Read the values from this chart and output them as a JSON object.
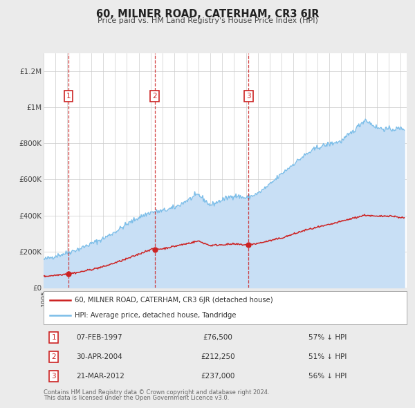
{
  "title": "60, MILNER ROAD, CATERHAM, CR3 6JR",
  "subtitle": "Price paid vs. HM Land Registry's House Price Index (HPI)",
  "hpi_label": "HPI: Average price, detached house, Tandridge",
  "property_label": "60, MILNER ROAD, CATERHAM, CR3 6JR (detached house)",
  "footer1": "Contains HM Land Registry data © Crown copyright and database right 2024.",
  "footer2": "This data is licensed under the Open Government Licence v3.0.",
  "hpi_color": "#7abde8",
  "hpi_fill_color": "#c8dff5",
  "property_color": "#cc2222",
  "background_color": "#ebebeb",
  "plot_bg_color": "#ffffff",
  "grid_color": "#cccccc",
  "ylim": [
    0,
    1300000
  ],
  "yticks": [
    0,
    200000,
    400000,
    600000,
    800000,
    1000000,
    1200000
  ],
  "ytick_labels": [
    "£0",
    "£200K",
    "£400K",
    "£600K",
    "£800K",
    "£1M",
    "£1.2M"
  ],
  "xstart": 1995.0,
  "xend": 2025.5,
  "transactions": [
    {
      "num": 1,
      "date": "07-FEB-1997",
      "price": 76500,
      "pct": "57% ↓ HPI",
      "year": 1997.1
    },
    {
      "num": 2,
      "date": "30-APR-2004",
      "price": 212250,
      "pct": "51% ↓ HPI",
      "year": 2004.33
    },
    {
      "num": 3,
      "date": "21-MAR-2012",
      "price": 237000,
      "pct": "56% ↓ HPI",
      "year": 2012.22
    }
  ],
  "table_rows": [
    [
      "1",
      "07-FEB-1997",
      "£76,500",
      "57% ↓ HPI"
    ],
    [
      "2",
      "30-APR-2004",
      "£212,250",
      "51% ↓ HPI"
    ],
    [
      "3",
      "21-MAR-2012",
      "£237,000",
      "56% ↓ HPI"
    ]
  ]
}
